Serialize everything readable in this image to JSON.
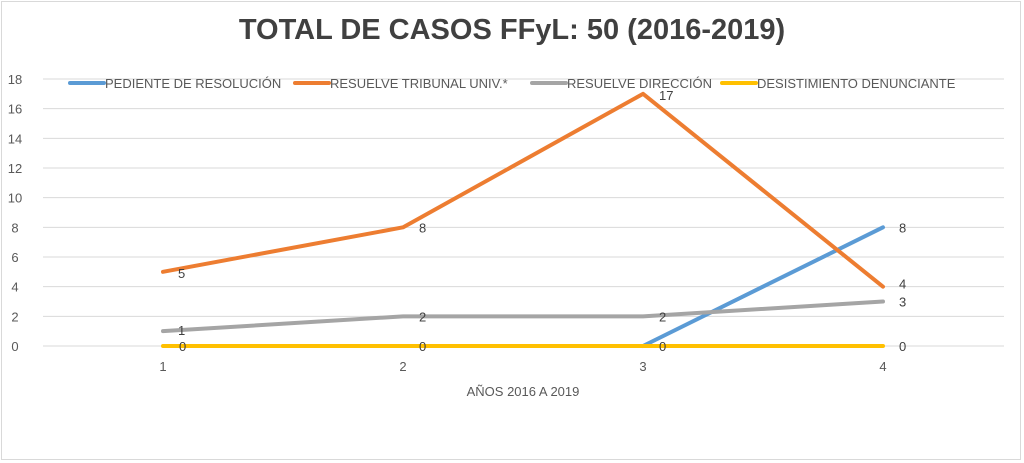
{
  "chart_data": {
    "type": "line",
    "title": "TOTAL DE CASOS FFyL: 50 (2016-2019)",
    "xlabel": "AÑOS 2016 A 2019",
    "ylabel": "",
    "x": [
      1,
      2,
      3,
      4
    ],
    "x_tick_labels": [
      "1",
      "2",
      "3",
      "4"
    ],
    "ylim": [
      0,
      18
    ],
    "y_ticks": [
      0,
      2,
      4,
      6,
      8,
      10,
      12,
      14,
      16,
      18
    ],
    "grid": "on",
    "legend_position": "top",
    "series": [
      {
        "name": "PEDIENTE DE RESOLUCIÓN",
        "color": "#5b9bd5",
        "values": [
          null,
          null,
          0,
          8
        ],
        "labels": [
          null,
          null,
          null,
          "8"
        ]
      },
      {
        "name": "RESUELVE TRIBUNAL UNIV.*",
        "color": "#ed7d31",
        "values": [
          5,
          8,
          17,
          4
        ],
        "labels": [
          "5",
          "8",
          "17",
          "4"
        ]
      },
      {
        "name": "RESUELVE DIRECCIÓN",
        "color": "#a5a5a5",
        "values": [
          1,
          2,
          2,
          3
        ],
        "labels": [
          "1",
          "2",
          "2",
          "3"
        ]
      },
      {
        "name": "DESISTIMIENTO DENUNCIANTE",
        "color": "#ffc000",
        "values": [
          0,
          0,
          0,
          0
        ],
        "labels": [
          "0",
          "0",
          "0",
          "0"
        ]
      }
    ]
  }
}
